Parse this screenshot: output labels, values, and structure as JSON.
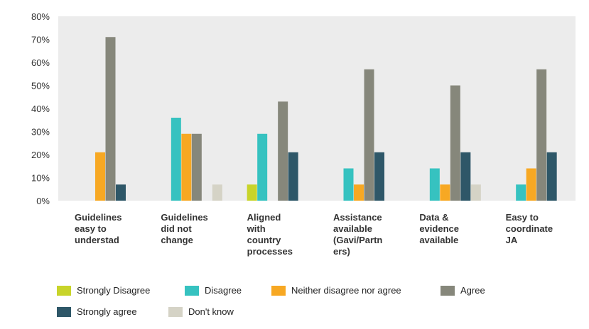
{
  "chart_data": {
    "type": "bar",
    "title": "",
    "xlabel": "",
    "ylabel": "",
    "ylim": [
      0,
      80
    ],
    "y_ticks": [
      "0%",
      "10%",
      "20%",
      "30%",
      "40%",
      "50%",
      "60%",
      "70%",
      "80%"
    ],
    "grid": false,
    "legend_position": "bottom",
    "categories": [
      "Guidelines\neasy to\nunderstad",
      "Guidelines\ndid not\nchange",
      "Aligned\nwith\ncountry\nprocesses",
      "Assistance\navailable\n(Gavi/Partn\ners)",
      "Data &\nevidence\navailable",
      "Easy to\ncoordinate\nJA"
    ],
    "series": [
      {
        "name": "Strongly Disagree",
        "color": "#c8d42a",
        "values": [
          0,
          0,
          7,
          0,
          0,
          0
        ]
      },
      {
        "name": "Disagree",
        "color": "#36c2c0",
        "values": [
          0,
          36,
          29,
          14,
          14,
          7
        ]
      },
      {
        "name": "Neither disagree nor agree",
        "color": "#f7a823",
        "values": [
          21,
          29,
          0,
          7,
          7,
          14
        ]
      },
      {
        "name": "Agree",
        "color": "#86877b",
        "values": [
          71,
          29,
          43,
          57,
          50,
          57
        ]
      },
      {
        "name": "Strongly agree",
        "color": "#2e5768",
        "values": [
          7,
          0,
          21,
          21,
          21,
          21
        ]
      },
      {
        "name": "Don't know",
        "color": "#d5d3c6",
        "values": [
          0,
          7,
          0,
          0,
          7,
          0
        ]
      }
    ],
    "plot_background": "#ececec"
  }
}
